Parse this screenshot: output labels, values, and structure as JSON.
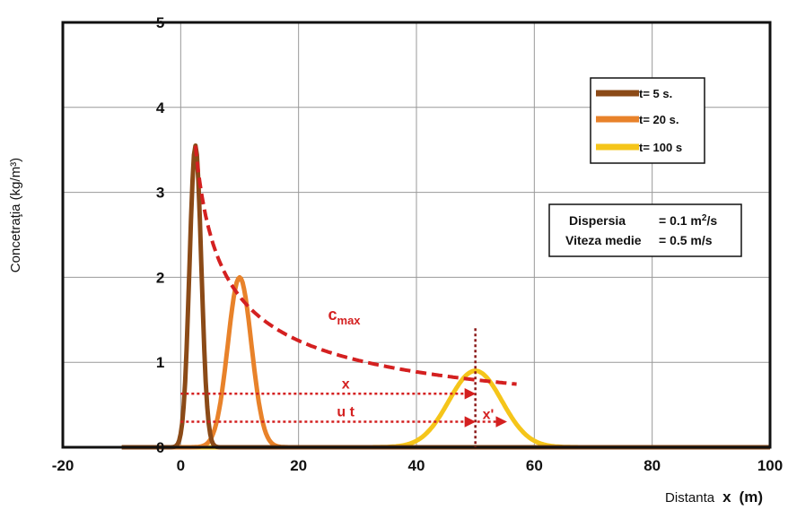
{
  "chart_data": {
    "type": "line",
    "xlabel_prefix": "Distanta",
    "xlabel_symbol": "x",
    "xlabel_unit": "(m)",
    "ylabel": "Concetraţia (kg/m³)",
    "xlim": [
      -20,
      100
    ],
    "ylim": [
      0,
      5
    ],
    "x_ticks": [
      -20,
      0,
      20,
      40,
      60,
      80,
      100
    ],
    "y_ticks": [
      0,
      1,
      2,
      3,
      4,
      5
    ],
    "grid": true,
    "legend_position": "top-right",
    "series": [
      {
        "name": "t= 5 s.",
        "color": "#8b4a17",
        "center": 2.5,
        "peak": 3.55,
        "sigma": 1.0
      },
      {
        "name": "t= 20 s.",
        "color": "#e8822a",
        "center": 10,
        "peak": 2.0,
        "sigma": 2.0
      },
      {
        "name": "t= 100 s",
        "color": "#f5c51a",
        "center": 50,
        "peak": 0.9,
        "sigma": 4.5
      }
    ],
    "envelope": {
      "label": "c",
      "label_sub": "max",
      "color": "#d42020",
      "x_start": 2.5,
      "x_end": 57,
      "x_ref": 2.5,
      "y_ref": 3.55
    },
    "info_box": {
      "line1": {
        "label": "Dispersia",
        "value": "= 0.1 m",
        "sup": "2",
        "unit": "/s"
      },
      "line2": {
        "label": "Viteza medie",
        "value": "= 0.5 m/s"
      }
    },
    "annotations": {
      "x_label": "x",
      "ut_label": "u t",
      "xprime_label": "x'",
      "arrow_x_y": 0.63,
      "arrow_ut_y": 0.3,
      "arrow_start_x": 0,
      "arrow_end_x": 50,
      "xprime_end_x": 55,
      "vline_x": 50,
      "vline_ymax": 1.4
    }
  }
}
